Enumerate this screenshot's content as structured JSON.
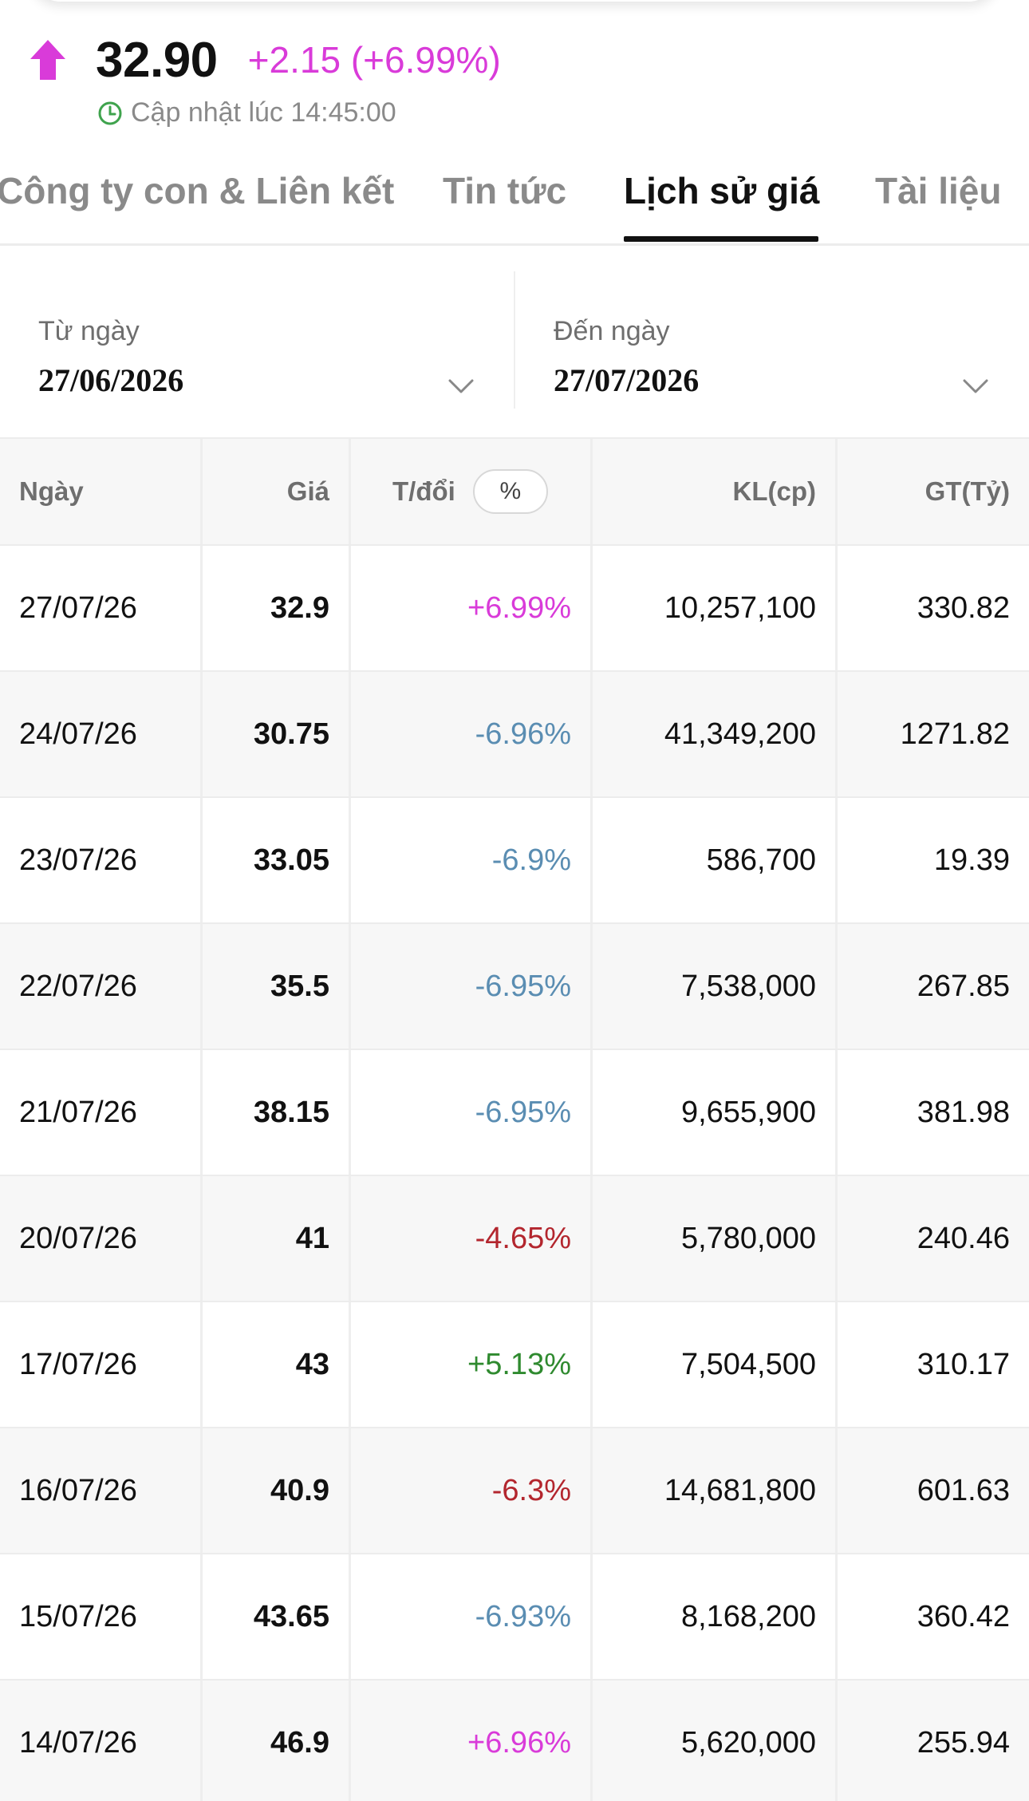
{
  "header": {
    "price": "32.90",
    "change": "+2.15 (+6.99%)",
    "update_text": "Cập nhật lúc 14:45:00",
    "colors": {
      "ceiling": "#d93bd9",
      "clock": "#3fa34d"
    }
  },
  "tabs": [
    {
      "label": "Công ty con & Liên kết",
      "active": false
    },
    {
      "label": "Tin tức",
      "active": false
    },
    {
      "label": "Lịch sử giá",
      "active": true
    },
    {
      "label": "Tài liệu",
      "active": false
    }
  ],
  "date_filter": {
    "from_label": "Từ ngày",
    "from_value": "27/06/2026",
    "to_label": "Đến ngày",
    "to_value": "27/07/2026"
  },
  "table": {
    "headers": {
      "date": "Ngày",
      "price": "Giá",
      "change": "T/đổi",
      "toggle": "%",
      "volume": "KL(cp)",
      "value": "GT(Tỷ)"
    },
    "rows": [
      {
        "date": "27/07/26",
        "price": "32.9",
        "change": "+6.99%",
        "volume": "10,257,100",
        "value": "330.82"
      },
      {
        "date": "24/07/26",
        "price": "30.75",
        "change": "-6.96%",
        "volume": "41,349,200",
        "value": "1271.82"
      },
      {
        "date": "23/07/26",
        "price": "33.05",
        "change": "-6.9%",
        "volume": "586,700",
        "value": "19.39"
      },
      {
        "date": "22/07/26",
        "price": "35.5",
        "change": "-6.95%",
        "volume": "7,538,000",
        "value": "267.85"
      },
      {
        "date": "21/07/26",
        "price": "38.15",
        "change": "-6.95%",
        "volume": "9,655,900",
        "value": "381.98"
      },
      {
        "date": "20/07/26",
        "price": "41",
        "change": "-4.65%",
        "volume": "5,780,000",
        "value": "240.46"
      },
      {
        "date": "17/07/26",
        "price": "43",
        "change": "+5.13%",
        "volume": "7,504,500",
        "value": "310.17"
      },
      {
        "date": "16/07/26",
        "price": "40.9",
        "change": "-6.3%",
        "volume": "14,681,800",
        "value": "601.63"
      },
      {
        "date": "15/07/26",
        "price": "43.65",
        "change": "-6.93%",
        "volume": "8,168,200",
        "value": "360.42"
      },
      {
        "date": "14/07/26",
        "price": "46.9",
        "change": "+6.96%",
        "volume": "5,620,000",
        "value": "255.94"
      }
    ]
  }
}
